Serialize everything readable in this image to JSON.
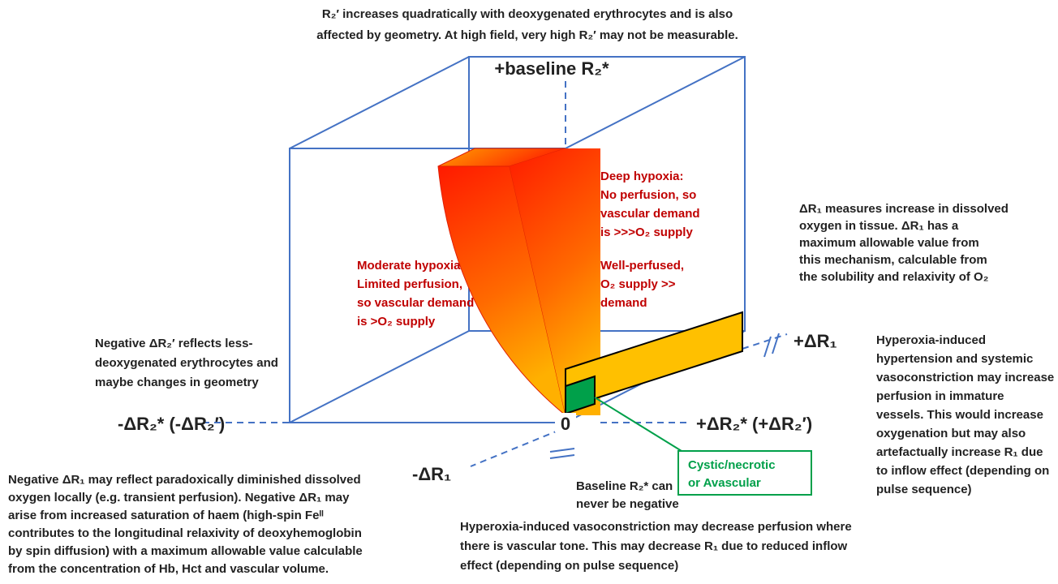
{
  "top_note": [
    "R₂′ increases quadratically with deoxygenated erythrocytes and is also",
    "affected by geometry. At high field, very high R₂′ may not be measurable."
  ],
  "axes": {
    "up": "+baseline R₂*",
    "left": "-ΔR₂* (-ΔR₂′)",
    "right": "+ΔR₂* (+ΔR₂′)",
    "origin": "0",
    "depth_pos": "+ΔR₁",
    "depth_neg": "-ΔR₁"
  },
  "regions": {
    "deep_hypoxia": [
      "Deep hypoxia:",
      "No perfusion, so",
      "vascular demand",
      "is >>>O₂ supply"
    ],
    "moderate_hypoxia": [
      "Moderate hypoxia",
      "Limited perfusion,",
      "so vascular demand",
      "is >O₂ supply"
    ],
    "well_perfused": [
      "Well-perfused,",
      "O₂ supply >>",
      "demand"
    ],
    "cystic": [
      "Cystic/necrotic",
      "or Avascular"
    ]
  },
  "notes": {
    "delta_r1_max": [
      "ΔR₁ measures increase in dissolved",
      "oxygen in tissue. ΔR₁ has a",
      "maximum allowable value from",
      "this mechanism, calculable from",
      "the solubility and relaxivity of O₂"
    ],
    "hyperoxia_hypertension": [
      "Hyperoxia-induced",
      "hypertension and systemic",
      "vasoconstriction may increase",
      "perfusion in immature",
      "vessels. This would increase",
      "oxygenation but may also",
      "artefactually increase R₁ due",
      "to inflow effect (depending on",
      "pulse sequence)"
    ],
    "negative_r2": [
      "Negative ΔR₂′ reflects less-",
      "deoxygenated erythrocytes and",
      "maybe changes in geometry"
    ],
    "negative_r1": [
      "Negative ΔR₁ may reflect paradoxically diminished dissolved",
      "oxygen locally (e.g. transient perfusion). Negative ΔR₁ may",
      "arise from increased saturation of haem (high-spin Feᴵᴵ",
      "contributes to the longitudinal relaxivity of deoxyhemoglobin",
      "by spin diffusion) with a maximum allowable value calculable",
      "from the concentration of Hb, Hct and vascular volume."
    ],
    "baseline": [
      "Baseline R₂* can",
      "never be negative"
    ],
    "vasoconstriction": [
      "Hyperoxia-induced vasoconstriction may decrease perfusion where",
      "there is vascular tone.  This may decrease R₁ due to reduced inflow",
      "effect (depending on pulse sequence)"
    ]
  }
}
